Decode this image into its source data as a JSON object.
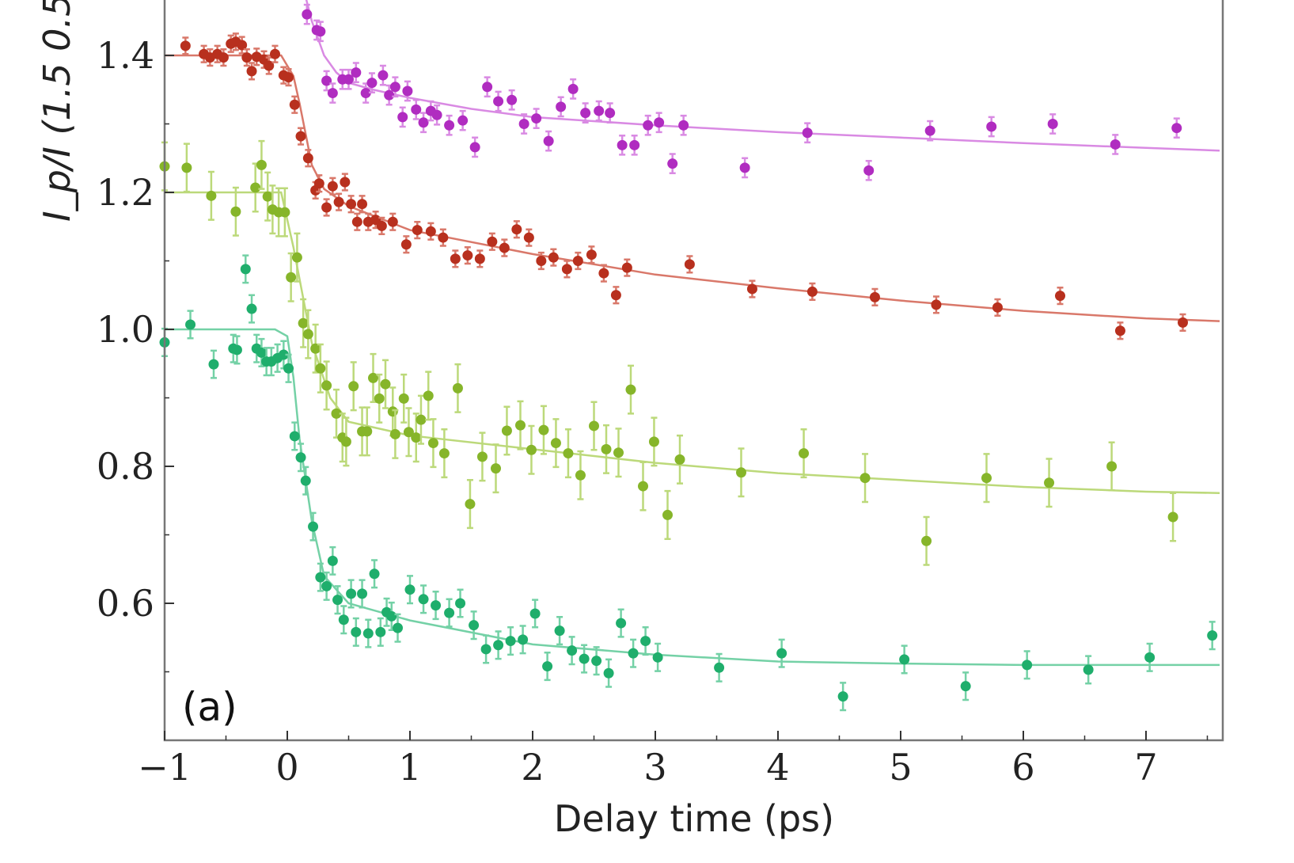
{
  "chart_data": {
    "type": "scatter",
    "panel_label": "(a)",
    "xlabel": "Delay time (ps)",
    "ylabel": "I_p/I (1.5 0.5",
    "xlim": [
      -1,
      7.6
    ],
    "ylim": [
      0.4,
      1.48
    ],
    "xticks": [
      -1,
      0,
      1,
      2,
      3,
      4,
      5,
      6,
      7
    ],
    "xtick_labels": [
      "−1",
      "0",
      "1",
      "2",
      "3",
      "4",
      "5",
      "6",
      "7"
    ],
    "yticks": [
      0.6,
      0.8,
      1.0,
      1.2,
      1.4
    ],
    "ytick_labels": [
      "0.6",
      "0.8",
      "1.0",
      "1.2",
      "1.4"
    ],
    "grid": false,
    "series": [
      {
        "color": "#b02cc0",
        "fit_color": "#d98ae3",
        "err": 0.014,
        "x": [
          0.16,
          0.24,
          0.27,
          0.32,
          0.37,
          0.45,
          0.5,
          0.56,
          0.64,
          0.69,
          0.78,
          0.83,
          0.88,
          0.94,
          0.98,
          1.05,
          1.11,
          1.17,
          1.22,
          1.32,
          1.43,
          1.53,
          1.63,
          1.72,
          1.83,
          1.93,
          2.03,
          2.13,
          2.23,
          2.33,
          2.43,
          2.54,
          2.63,
          2.73,
          2.83,
          2.94,
          3.03,
          3.14,
          3.23,
          3.73,
          4.24,
          4.74,
          5.24,
          5.74,
          6.24,
          6.75,
          7.25
        ],
        "y": [
          1.46,
          1.437,
          1.435,
          1.363,
          1.345,
          1.365,
          1.365,
          1.375,
          1.345,
          1.36,
          1.371,
          1.342,
          1.354,
          1.31,
          1.348,
          1.321,
          1.302,
          1.319,
          1.313,
          1.298,
          1.305,
          1.266,
          1.354,
          1.333,
          1.335,
          1.3,
          1.308,
          1.275,
          1.325,
          1.351,
          1.316,
          1.319,
          1.316,
          1.269,
          1.269,
          1.298,
          1.302,
          1.242,
          1.298,
          1.236,
          1.287,
          1.232,
          1.29,
          1.296,
          1.3,
          1.27,
          1.294
        ],
        "fit_x": [
          0.1,
          0.2,
          0.3,
          0.4,
          0.5,
          0.7,
          1,
          1.5,
          2,
          3,
          4,
          5,
          6,
          7,
          7.6
        ],
        "fit_y": [
          1.52,
          1.45,
          1.4,
          1.375,
          1.36,
          1.35,
          1.338,
          1.322,
          1.31,
          1.298,
          1.288,
          1.28,
          1.272,
          1.265,
          1.261
        ]
      },
      {
        "color": "#b8301e",
        "fit_color": "#d9786a",
        "err": 0.012,
        "x": [
          -0.83,
          -0.68,
          -0.63,
          -0.57,
          -0.52,
          -0.46,
          -0.42,
          -0.37,
          -0.33,
          -0.29,
          -0.25,
          -0.19,
          -0.15,
          -0.1,
          -0.03,
          0.01,
          0.06,
          0.11,
          0.17,
          0.23,
          0.26,
          0.32,
          0.37,
          0.42,
          0.47,
          0.52,
          0.57,
          0.61,
          0.66,
          0.72,
          0.77,
          0.86,
          0.97,
          1.06,
          1.17,
          1.27,
          1.37,
          1.47,
          1.57,
          1.67,
          1.77,
          1.87,
          1.97,
          2.07,
          2.17,
          2.28,
          2.37,
          2.48,
          2.58,
          2.68,
          2.77,
          3.28,
          3.79,
          4.28,
          4.79,
          5.29,
          5.79,
          6.3,
          6.79,
          7.3
        ],
        "y": [
          1.414,
          1.402,
          1.397,
          1.402,
          1.397,
          1.417,
          1.42,
          1.415,
          1.397,
          1.377,
          1.398,
          1.394,
          1.385,
          1.402,
          1.371,
          1.368,
          1.328,
          1.282,
          1.25,
          1.203,
          1.213,
          1.178,
          1.209,
          1.186,
          1.215,
          1.183,
          1.157,
          1.183,
          1.157,
          1.16,
          1.151,
          1.157,
          1.124,
          1.145,
          1.143,
          1.134,
          1.103,
          1.108,
          1.103,
          1.128,
          1.119,
          1.146,
          1.134,
          1.1,
          1.105,
          1.088,
          1.1,
          1.109,
          1.082,
          1.05,
          1.09,
          1.095,
          1.059,
          1.055,
          1.047,
          1.036,
          1.032,
          1.049,
          0.998,
          1.01
        ],
        "fit_x": [
          -1,
          -0.05,
          0.05,
          0.1,
          0.2,
          0.3,
          0.5,
          1,
          2,
          3,
          4,
          5,
          6,
          7,
          7.6
        ],
        "fit_y": [
          1.4,
          1.4,
          1.37,
          1.33,
          1.24,
          1.205,
          1.18,
          1.145,
          1.11,
          1.08,
          1.06,
          1.042,
          1.027,
          1.016,
          1.012
        ]
      },
      {
        "color": "#86b52a",
        "fit_color": "#bcd97a",
        "err": 0.035,
        "x": [
          -1.0,
          -0.82,
          -0.62,
          -0.42,
          -0.26,
          -0.21,
          -0.16,
          -0.12,
          -0.07,
          -0.02,
          0.03,
          0.08,
          0.13,
          0.17,
          0.23,
          0.27,
          0.32,
          0.4,
          0.45,
          0.48,
          0.54,
          0.61,
          0.65,
          0.7,
          0.75,
          0.8,
          0.86,
          0.88,
          0.95,
          0.99,
          1.05,
          1.09,
          1.15,
          1.19,
          1.28,
          1.39,
          1.49,
          1.59,
          1.7,
          1.79,
          1.9,
          1.99,
          2.09,
          2.19,
          2.29,
          2.39,
          2.5,
          2.6,
          2.7,
          2.8,
          2.9,
          2.99,
          3.1,
          3.2,
          3.7,
          4.21,
          4.71,
          5.21,
          5.7,
          6.21,
          6.72,
          7.22
        ],
        "y": [
          1.238,
          1.236,
          1.195,
          1.172,
          1.207,
          1.24,
          1.194,
          1.175,
          1.171,
          1.171,
          1.076,
          1.105,
          1.009,
          0.993,
          0.972,
          0.943,
          0.918,
          0.877,
          0.842,
          0.836,
          0.917,
          0.851,
          0.851,
          0.929,
          0.899,
          0.92,
          0.88,
          0.847,
          0.899,
          0.85,
          0.842,
          0.868,
          0.903,
          0.834,
          0.819,
          0.914,
          0.745,
          0.814,
          0.797,
          0.852,
          0.86,
          0.824,
          0.853,
          0.834,
          0.819,
          0.787,
          0.859,
          0.825,
          0.82,
          0.912,
          0.771,
          0.836,
          0.729,
          0.81,
          0.791,
          0.819,
          0.783,
          0.691,
          0.783,
          0.776,
          0.8,
          0.726
        ],
        "fit_x": [
          -1,
          -0.05,
          0.05,
          0.2,
          0.35,
          0.5,
          1,
          2,
          3,
          4,
          5,
          6,
          7,
          7.6
        ],
        "fit_y": [
          1.2,
          1.2,
          1.12,
          0.98,
          0.9,
          0.865,
          0.845,
          0.825,
          0.805,
          0.79,
          0.78,
          0.77,
          0.763,
          0.761
        ]
      },
      {
        "color": "#1fae6c",
        "fit_color": "#74d1a6",
        "err": 0.02,
        "x": [
          -1.0,
          -0.79,
          -0.6,
          -0.44,
          -0.41,
          -0.34,
          -0.29,
          -0.25,
          -0.21,
          -0.17,
          -0.13,
          -0.08,
          -0.03,
          0.01,
          0.06,
          0.11,
          0.15,
          0.21,
          0.27,
          0.32,
          0.37,
          0.41,
          0.46,
          0.52,
          0.56,
          0.61,
          0.66,
          0.71,
          0.76,
          0.81,
          0.85,
          0.9,
          1.0,
          1.11,
          1.21,
          1.32,
          1.41,
          1.52,
          1.62,
          1.72,
          1.82,
          1.92,
          2.02,
          2.12,
          2.22,
          2.32,
          2.42,
          2.52,
          2.62,
          2.72,
          2.82,
          2.92,
          3.02,
          3.52,
          4.03,
          4.53,
          5.03,
          5.53,
          6.03,
          6.53,
          7.03,
          7.54
        ],
        "y": [
          0.981,
          1.007,
          0.949,
          0.972,
          0.97,
          1.088,
          1.03,
          0.972,
          0.966,
          0.953,
          0.953,
          0.958,
          0.963,
          0.943,
          0.844,
          0.813,
          0.779,
          0.712,
          0.638,
          0.625,
          0.662,
          0.605,
          0.576,
          0.614,
          0.558,
          0.614,
          0.556,
          0.643,
          0.558,
          0.587,
          0.581,
          0.564,
          0.62,
          0.606,
          0.597,
          0.586,
          0.6,
          0.568,
          0.533,
          0.539,
          0.545,
          0.547,
          0.585,
          0.508,
          0.56,
          0.531,
          0.519,
          0.516,
          0.498,
          0.571,
          0.527,
          0.545,
          0.521,
          0.506,
          0.527,
          0.464,
          0.518,
          0.479,
          0.51,
          0.503,
          0.521,
          0.553
        ],
        "fit_x": [
          -1,
          -0.1,
          0,
          0.05,
          0.1,
          0.2,
          0.3,
          0.5,
          1,
          2,
          3,
          4,
          5,
          6,
          7.6
        ],
        "fit_y": [
          1.0,
          1.0,
          0.99,
          0.93,
          0.84,
          0.72,
          0.64,
          0.6,
          0.575,
          0.54,
          0.525,
          0.515,
          0.512,
          0.51,
          0.51
        ]
      }
    ]
  }
}
